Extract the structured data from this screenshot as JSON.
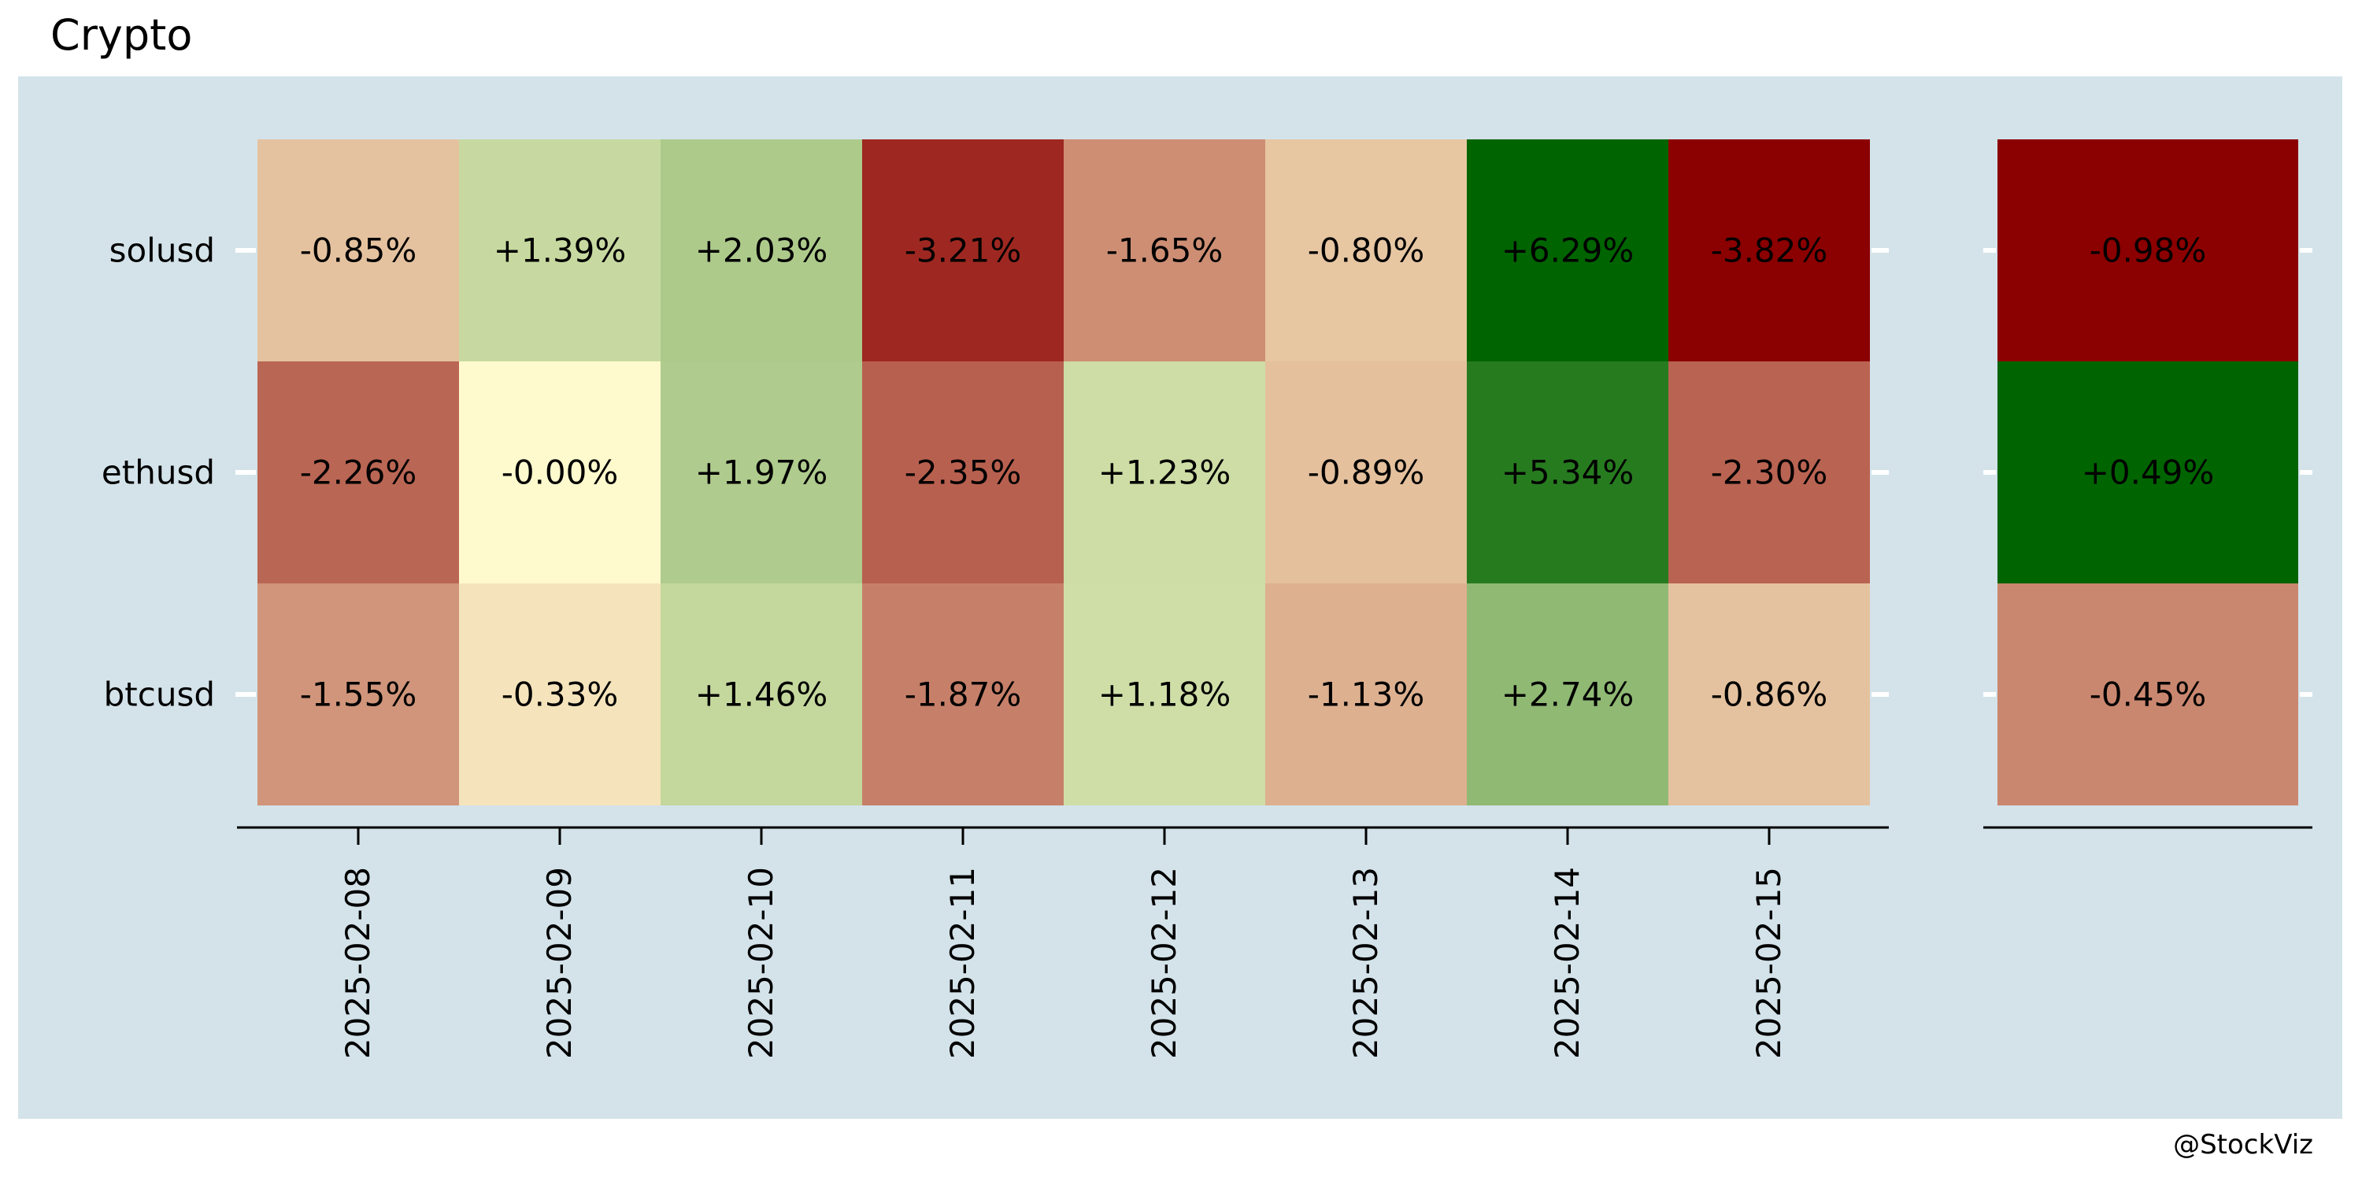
{
  "title": "Crypto",
  "credit": "@StockViz",
  "chart_data": {
    "type": "heatmap",
    "x_categories": [
      "2025-02-08",
      "2025-02-09",
      "2025-02-10",
      "2025-02-11",
      "2025-02-12",
      "2025-02-13",
      "2025-02-14",
      "2025-02-15"
    ],
    "y_categories": [
      "solusd",
      "ethusd",
      "btcusd"
    ],
    "values": [
      [
        -0.85,
        1.39,
        2.03,
        -3.21,
        -1.65,
        -0.8,
        6.29,
        -3.82
      ],
      [
        -2.26,
        -0.0,
        1.97,
        -2.35,
        1.23,
        -0.89,
        5.34,
        -2.3
      ],
      [
        -1.55,
        -0.33,
        1.46,
        -1.87,
        1.18,
        -1.13,
        2.74,
        -0.86
      ]
    ],
    "labels": [
      [
        "-0.85%",
        "+1.39%",
        "+2.03%",
        "-3.21%",
        "-1.65%",
        "-0.80%",
        "+6.29%",
        "-3.82%"
      ],
      [
        "-2.26%",
        "-0.00%",
        "+1.97%",
        "-2.35%",
        "+1.23%",
        "-0.89%",
        "+5.34%",
        "-2.30%"
      ],
      [
        "-1.55%",
        "-0.33%",
        "+1.46%",
        "-1.87%",
        "+1.18%",
        "-1.13%",
        "+2.74%",
        "-0.86%"
      ]
    ],
    "summary": {
      "values": [
        -0.98,
        0.49,
        -0.45
      ],
      "labels": [
        "-0.98%",
        "+0.49%",
        "-0.45%"
      ]
    },
    "colors": {
      "negative": "#8b0000",
      "neutral": "#fffacd",
      "positive": "#006400",
      "panel_background": "#d4e3ea"
    }
  }
}
